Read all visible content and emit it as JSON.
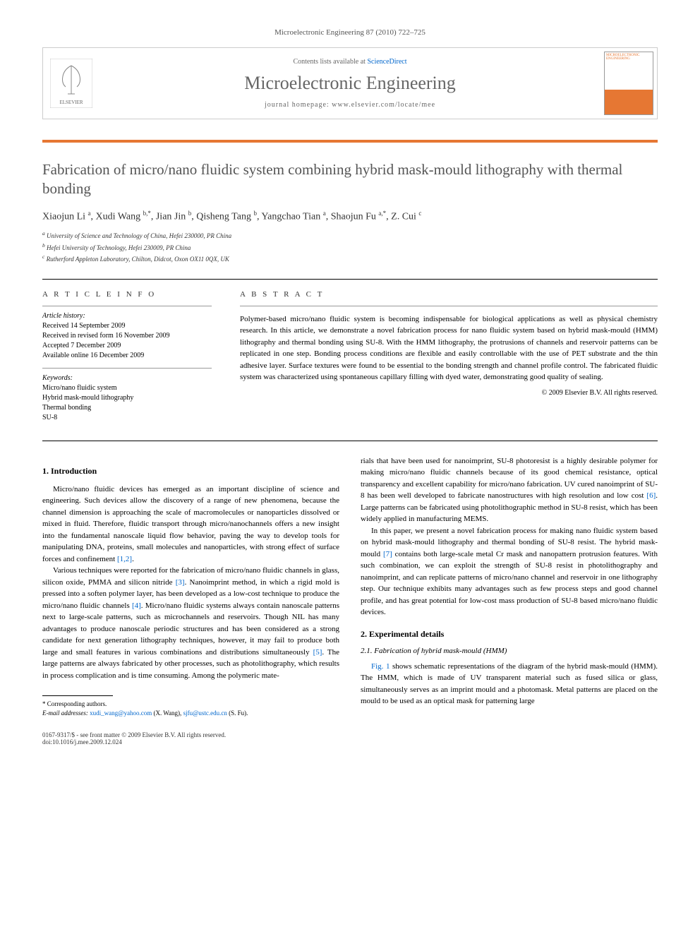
{
  "header_citation": "Microelectronic Engineering 87 (2010) 722–725",
  "banner": {
    "contents_text": "Contents lists available at ",
    "sciencedirect": "ScienceDirect",
    "journal_name": "Microelectronic Engineering",
    "homepage_label": "journal homepage: ",
    "homepage_url": "www.elsevier.com/locate/mee",
    "cover_text": "MICROELECTRONIC ENGINEERING",
    "publisher": "ELSEVIER"
  },
  "title": "Fabrication of micro/nano fluidic system combining hybrid mask-mould lithography with thermal bonding",
  "authors_html": "Xiaojun Li <sup>a</sup>, Xudi Wang <sup>b,*</sup>, Jian Jin <sup>b</sup>, Qisheng Tang <sup>b</sup>, Yangchao Tian <sup>a</sup>, Shaojun Fu <sup>a,*</sup>, Z. Cui <sup>c</sup>",
  "affiliations": [
    "a University of Science and Technology of China, Hefei 230000, PR China",
    "b Hefei University of Technology, Hefei 230009, PR China",
    "c Rutherford Appleton Laboratory, Chilton, Didcot, Oxon OX11 0QX, UK"
  ],
  "article_info": {
    "heading": "A R T I C L E   I N F O",
    "history_label": "Article history:",
    "history": [
      "Received 14 September 2009",
      "Received in revised form 16 November 2009",
      "Accepted 7 December 2009",
      "Available online 16 December 2009"
    ],
    "keywords_label": "Keywords:",
    "keywords": [
      "Micro/nano fluidic system",
      "Hybrid mask-mould lithography",
      "Thermal bonding",
      "SU-8"
    ]
  },
  "abstract": {
    "heading": "A B S T R A C T",
    "text": "Polymer-based micro/nano fluidic system is becoming indispensable for biological applications as well as physical chemistry research. In this article, we demonstrate a novel fabrication process for nano fluidic system based on hybrid mask-mould (HMM) lithography and thermal bonding using SU-8. With the HMM lithography, the protrusions of channels and reservoir patterns can be replicated in one step. Bonding process conditions are flexible and easily controllable with the use of PET substrate and the thin adhesive layer. Surface textures were found to be essential to the bonding strength and channel profile control. The fabricated fluidic system was characterized using spontaneous capillary filling with dyed water, demonstrating good quality of sealing.",
    "copyright": "© 2009 Elsevier B.V. All rights reserved."
  },
  "sections": {
    "intro_heading": "1. Introduction",
    "intro_p1": "Micro/nano fluidic devices has emerged as an important discipline of science and engineering. Such devices allow the discovery of a range of new phenomena, because the channel dimension is approaching the scale of macromolecules or nanoparticles dissolved or mixed in fluid. Therefore, fluidic transport through micro/nanochannels offers a new insight into the fundamental nanoscale liquid flow behavior, paving the way to develop tools for manipulating DNA, proteins, small molecules and nanoparticles, with strong effect of surface forces and confinement ",
    "ref12": "[1,2]",
    "intro_p2a": "Various techniques were reported for the fabrication of micro/nano fluidic channels in glass, silicon oxide, PMMA and silicon nitride ",
    "ref3": "[3]",
    "intro_p2b": ". Nanoimprint method, in which a rigid mold is pressed into a soften polymer layer, has been developed as a low-cost technique to produce the micro/nano fluidic channels ",
    "ref4": "[4]",
    "intro_p2c": ". Micro/nano fluidic systems always contain nanoscale patterns next to large-scale patterns, such as microchannels and reservoirs. Though NIL has many advantages to produce nanoscale periodic structures and has been considered as a strong candidate for next generation lithography techniques, however, it may fail to produce both large and small features in various combinations and distributions simultaneously ",
    "ref5": "[5]",
    "intro_p2d": ". The large patterns are always fabricated by other processes, such as photolithography, which results in process complication and is time consuming. Among the polymeric mate",
    "intro_p3a": "rials that have been used for nanoimprint, SU-8 photoresist is a highly desirable polymer for making micro/nano fluidic channels because of its good chemical resistance, optical transparency and excellent capability for micro/nano fabrication. UV cured nanoimprint of SU-8 has been well developed to fabricate nanostructures with high resolution and low cost ",
    "ref6": "[6]",
    "intro_p3b": ". Large patterns can be fabricated using photolithographic method in SU-8 resist, which has been widely applied in manufacturing MEMS.",
    "intro_p4a": "In this paper, we present a novel fabrication process for making nano fluidic system based on hybrid mask-mould lithography and thermal bonding of SU-8 resist. The hybrid mask-mould ",
    "ref7": "[7]",
    "intro_p4b": " contains both large-scale metal Cr mask and nanopattern protrusion features. With such combination, we can exploit the strength of SU-8 resist in photolithography and nanoimprint, and can replicate patterns of micro/nano channel and reservoir in one lithography step. Our technique exhibits many advantages such as few process steps and good channel profile, and has great potential for low-cost mass production of SU-8 based micro/nano fluidic devices.",
    "exp_heading": "2. Experimental details",
    "sub21_heading": "2.1. Fabrication of hybrid mask-mould (HMM)",
    "exp_p1a": "",
    "fig1_ref": "Fig. 1",
    "exp_p1b": " shows schematic representations of the diagram of the hybrid mask-mould (HMM). The HMM, which is made of UV transparent material such as fused silica or glass, simultaneously serves as an imprint mould and a photomask. Metal patterns are placed on the mould to be used as an optical mask for patterning large"
  },
  "footnote": {
    "corresponding": "* Corresponding authors.",
    "email_label": "E-mail addresses: ",
    "email1": "xudi_wang@yahoo.com",
    "email1_name": " (X. Wang), ",
    "email2": "sjfu@ustc.edu.cn",
    "email2_name": " (S. Fu)."
  },
  "footer": {
    "issn": "0167-9317/$ - see front matter © 2009 Elsevier B.V. All rights reserved.",
    "doi": "doi:10.1016/j.mee.2009.12.024"
  },
  "colors": {
    "orange": "#e67733",
    "link": "#0066cc",
    "gray_text": "#555555"
  }
}
